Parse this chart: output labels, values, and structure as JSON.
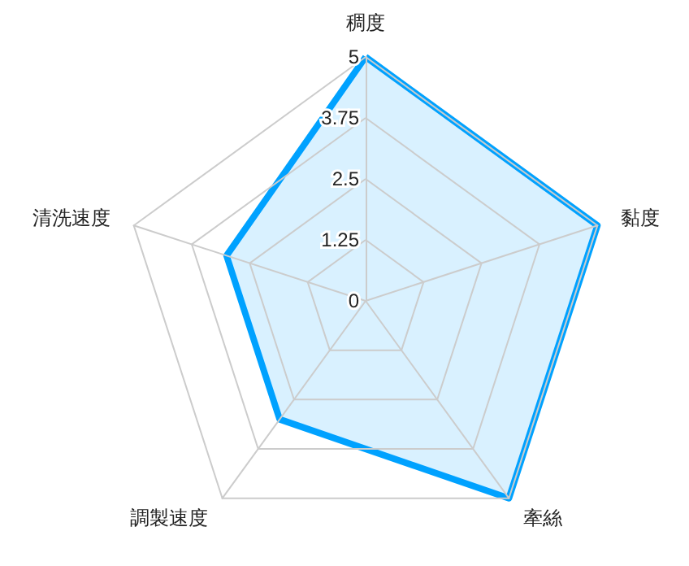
{
  "chart_data": {
    "type": "radar",
    "categories": [
      "稠度",
      "黏度",
      "牽絲",
      "調製速度",
      "清洗速度"
    ],
    "series": [
      {
        "color": "#00a2ff",
        "values": [
          5,
          5,
          5,
          3,
          3
        ]
      }
    ],
    "ylim": [
      0,
      5
    ],
    "yticks": [
      0,
      1.25,
      2.5,
      3.75,
      5
    ],
    "marker": "none"
  }
}
